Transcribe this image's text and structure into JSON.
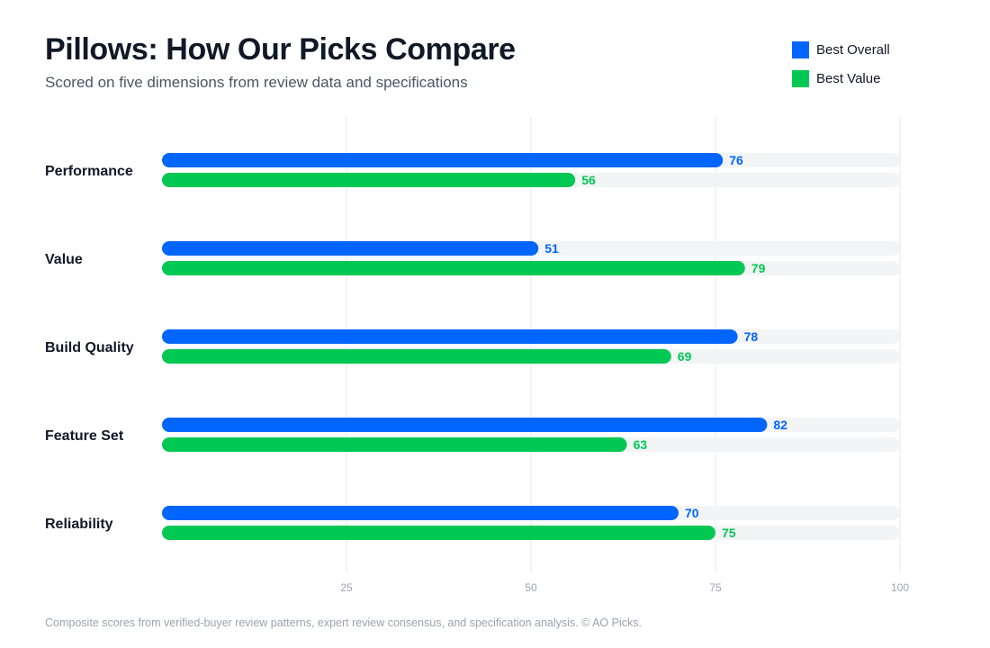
{
  "title": "Pillows: How Our Picks Compare",
  "subtitle": "Scored on five dimensions from review data and specifications",
  "footnote": "Composite scores from verified-buyer review patterns, expert review consensus, and specification analysis. © AO Picks.",
  "colors": {
    "best_overall": "#0066ff",
    "best_value": "#00c853",
    "track": "#f3f4f6",
    "grid": "#e5e7eb",
    "category_text": "#111827",
    "tick_text": "#9ca3af"
  },
  "chart_data": {
    "type": "bar",
    "orientation": "horizontal",
    "title": "Pillows: How Our Picks Compare",
    "subtitle": "Scored on five dimensions from review data and specifications",
    "categories": [
      "Performance",
      "Value",
      "Build Quality",
      "Feature Set",
      "Reliability"
    ],
    "series": [
      {
        "name": "Best Overall",
        "values": [
          76,
          51,
          78,
          82,
          70
        ]
      },
      {
        "name": "Best Value",
        "values": [
          56,
          79,
          69,
          63,
          75
        ]
      }
    ],
    "xlim": [
      0,
      100
    ],
    "xticks": [
      25,
      50,
      75,
      100
    ],
    "grid": true,
    "legend": "top-right",
    "data_labels": true
  }
}
